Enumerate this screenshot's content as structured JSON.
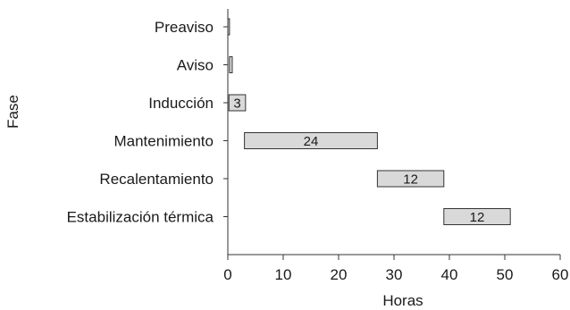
{
  "chart_data": {
    "type": "bar",
    "orientation": "horizontal",
    "subtype": "gantt",
    "xlabel": "Horas",
    "ylabel": "Fase",
    "xlim": [
      0,
      60
    ],
    "xticks": [
      0,
      10,
      20,
      30,
      40,
      50,
      60
    ],
    "grid": false,
    "bar_color": "#d9d9d9",
    "bar_edge_color": "#333333",
    "phases": [
      {
        "name": "Preaviso",
        "start": 0,
        "duration": 0.3,
        "label": ""
      },
      {
        "name": "Aviso",
        "start": 0.3,
        "duration": 0.5,
        "label": ""
      },
      {
        "name": "Inducción",
        "start": 0.2,
        "duration": 3,
        "label": "3"
      },
      {
        "name": "Mantenimiento",
        "start": 3,
        "duration": 24,
        "label": "24"
      },
      {
        "name": "Recalentamiento",
        "start": 27,
        "duration": 12,
        "label": "12"
      },
      {
        "name": "Estabilización térmica",
        "start": 39,
        "duration": 12,
        "label": "12"
      }
    ]
  }
}
